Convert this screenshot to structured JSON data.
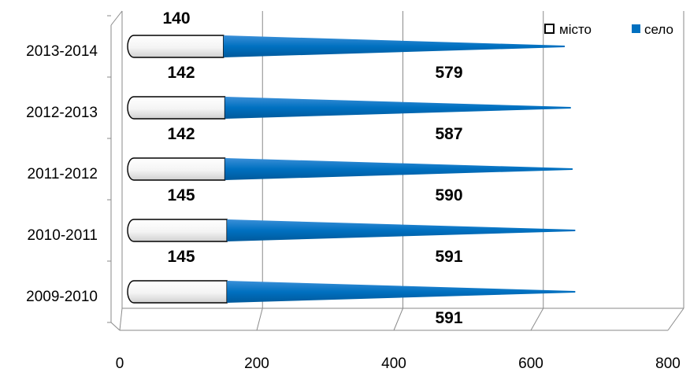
{
  "chart_data": {
    "type": "bar",
    "orientation": "horizontal",
    "stacked": true,
    "categories": [
      "2009-2010",
      "2010-2011",
      "2011-2012",
      "2012-2013",
      "2013-2014"
    ],
    "series": [
      {
        "name": "місто",
        "values": [
          145,
          145,
          142,
          142,
          140
        ],
        "color": "#ffffff"
      },
      {
        "name": "село",
        "values": [
          591,
          591,
          590,
          587,
          579
        ],
        "color": "#0070c0"
      }
    ],
    "xlim": [
      0,
      800
    ],
    "xticks": [
      0,
      200,
      400,
      600,
      800
    ],
    "grid": true,
    "legend": "top-right"
  }
}
